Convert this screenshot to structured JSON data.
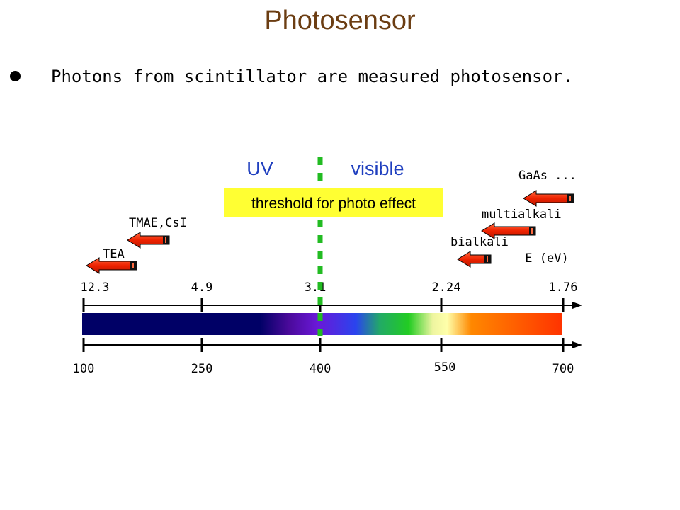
{
  "slide": {
    "title": "Photosensor",
    "bullet": "Photons from scintillator are measured photosensor."
  },
  "diagram": {
    "region_left": "UV",
    "region_right": "visible",
    "threshold_label": "threshold for photo effect",
    "energy_axis_label": "E (eV)",
    "energy_ticks": [
      "12.3",
      "4.9",
      "3.1",
      "2.24",
      "1.76"
    ],
    "wavelength_ticks": [
      "100",
      "250",
      "400",
      "550",
      "700"
    ],
    "sensors": [
      "TEA",
      "TMAE,CsI",
      "bialkali",
      "multialkali",
      "GaAs ..."
    ],
    "colors": {
      "title": "#6b3d12",
      "uv_visible_text": "#1f3fbf",
      "threshold_box": "#ffff33",
      "threshold_line": "#22bb22",
      "arrow_fill": "#ee2200"
    }
  }
}
